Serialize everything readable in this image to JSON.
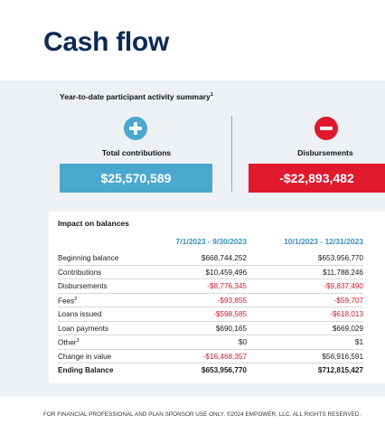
{
  "header": {
    "title": "Cash flow"
  },
  "summary": {
    "title": "Year-to-date participant activity summary",
    "title_note": "1",
    "contributions": {
      "label": "Total contributions",
      "amount": "$25,570,589",
      "color": "#4aa8cf",
      "icon": "plus-icon"
    },
    "disbursements": {
      "label": "Disbursements",
      "amount": "-$22,893,482",
      "color": "#e0192e",
      "icon": "minus-icon"
    }
  },
  "impact": {
    "title": "Impact on balances",
    "columns": [
      "7/1/2023 - 9/30/2023",
      "10/1/2023 - 12/31/2023"
    ],
    "rows": [
      {
        "label": "Beginning balance",
        "note": "",
        "v1": "$668,744,252",
        "v2": "$653,956,770"
      },
      {
        "label": "Contributions",
        "note": "",
        "v1": "$10,459,496",
        "v2": "$11,788,246"
      },
      {
        "label": "Disbursements",
        "note": "",
        "v1": "-$8,776,345",
        "v2": "-$9,837,490"
      },
      {
        "label": "Fees",
        "note": "2",
        "v1": "-$93,855",
        "v2": "-$59,707"
      },
      {
        "label": "Loans issued",
        "note": "",
        "v1": "-$598,585",
        "v2": "-$618,013"
      },
      {
        "label": "Loan payments",
        "note": "",
        "v1": "$690,165",
        "v2": "$669,029"
      },
      {
        "label": "Other",
        "note": "3",
        "v1": "$0",
        "v2": "$1"
      },
      {
        "label": "Change in value",
        "note": "",
        "v1": "-$16,468,357",
        "v2": "$56,916,591"
      },
      {
        "label": "Ending Balance",
        "note": "",
        "v1": "$653,956,770",
        "v2": "$712,815,427"
      }
    ]
  },
  "footer": {
    "text": "FOR FINANCIAL PROFESSIONAL AND PLAN SPONSOR USE ONLY. ©2024 EMPOWER, LLC. ALL RIGHTS RESERVED."
  }
}
